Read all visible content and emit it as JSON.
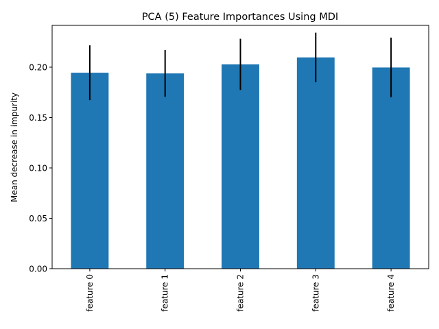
{
  "chart_data": {
    "type": "bar",
    "title": "PCA (5) Feature Importances Using MDI",
    "xlabel": "",
    "ylabel": "Mean decrease in impurity",
    "categories": [
      "feature 0",
      "feature 1",
      "feature 2",
      "feature 3",
      "feature 4"
    ],
    "values": [
      0.1945,
      0.1938,
      0.2028,
      0.2097,
      0.1997
    ],
    "errors": [
      0.0272,
      0.0232,
      0.0254,
      0.0246,
      0.0296
    ],
    "ylim": [
      0,
      0.2415
    ],
    "yticks": [
      "0.00",
      "0.05",
      "0.10",
      "0.15",
      "0.20"
    ],
    "ytick_values": [
      0,
      0.05,
      0.1,
      0.15,
      0.2
    ],
    "grid": false,
    "legend": "none",
    "colors": {
      "bar": "#1f77b4",
      "errorbar": "#000000",
      "axis": "#000000"
    }
  }
}
